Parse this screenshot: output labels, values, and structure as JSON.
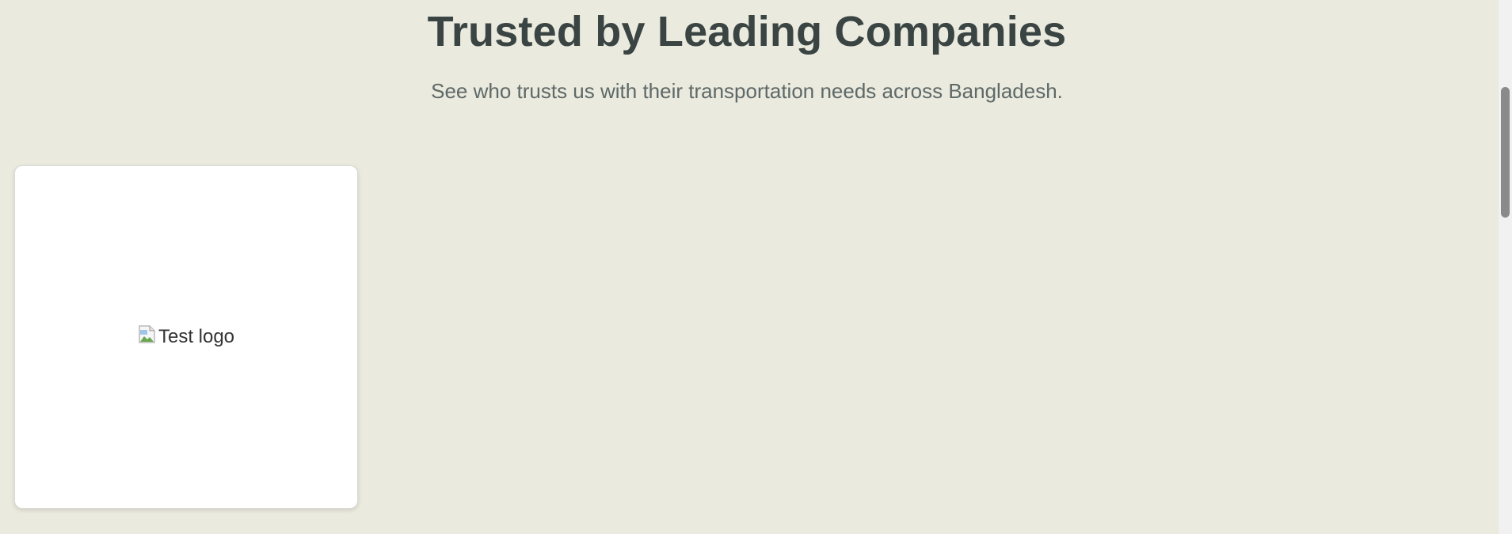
{
  "section": {
    "title": "Trusted by Leading Companies",
    "subtitle": "See who trusts us with their transportation needs across Bangladesh."
  },
  "logos": [
    {
      "alt_text": "Test logo",
      "icon": "broken-image-icon"
    }
  ],
  "colors": {
    "background": "#eaeade",
    "card": "#ffffff",
    "title": "#3a4443",
    "subtitle": "#5e6968"
  }
}
